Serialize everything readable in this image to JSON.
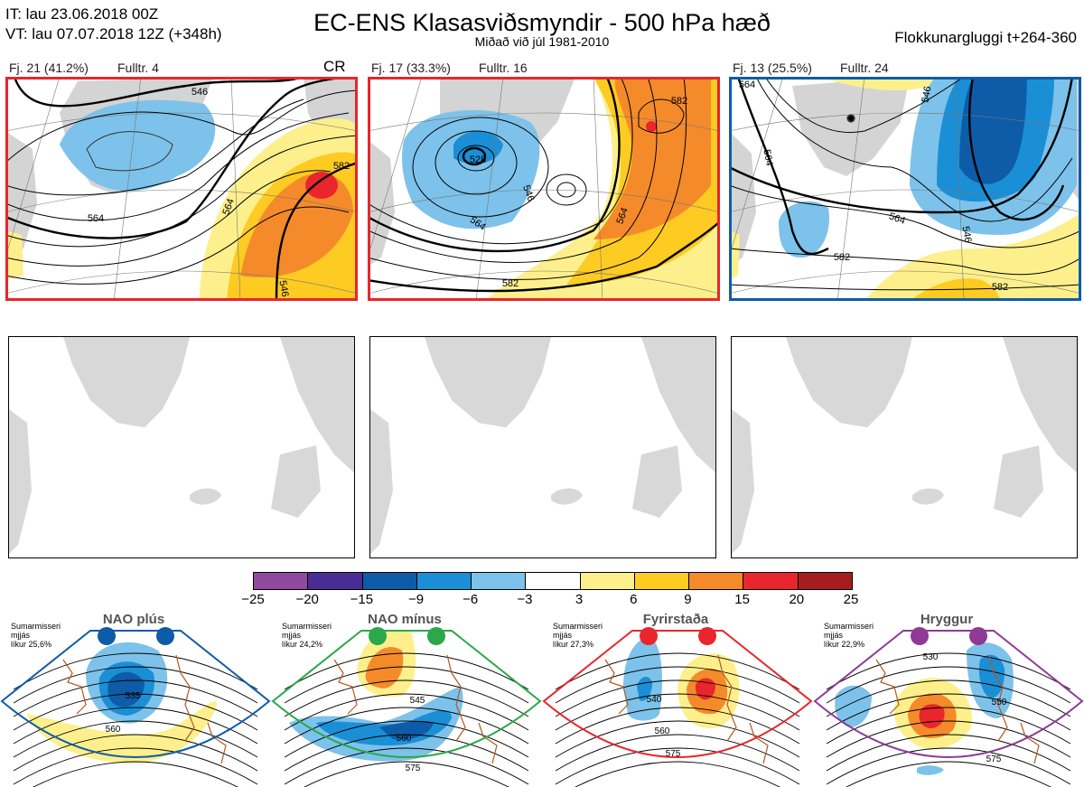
{
  "header": {
    "it": "IT: lau 23.06.2018 00Z",
    "vt": "VT: lau 07.07.2018 12Z  (+348h)",
    "title": "EC-ENS Klasasviðsmyndir - 500 hPa hæð",
    "subtitle": "Miðað við júl 1981-2010",
    "window": "Flokkunargluggi t+264-360"
  },
  "clusters": [
    {
      "label": "Fj. 21 (41.2%)",
      "fulltr": "Fulltr. 4",
      "code": "CR",
      "frame_color": "#e8262c",
      "contours": [
        "546",
        "564",
        "582",
        "564",
        "546"
      ]
    },
    {
      "label": "Fj. 17 (33.3%)",
      "fulltr": "Fulltr. 16",
      "code": "",
      "frame_color": "#e8262c",
      "contours": [
        "528",
        "546",
        "564",
        "582",
        "564",
        "582"
      ]
    },
    {
      "label": "Fj. 13 (25.5%)",
      "fulltr": "Fulltr. 24",
      "code": "",
      "frame_color": "#0e5ca8",
      "contours": [
        "564",
        "546",
        "564",
        "546",
        "582",
        "564",
        "582"
      ]
    }
  ],
  "colorbar": {
    "ticks": [
      "−25",
      "−20",
      "−15",
      "−9",
      "−6",
      "−3",
      "3",
      "6",
      "9",
      "15",
      "20",
      "25"
    ],
    "colors": [
      "#8e4a9c",
      "#4a2d94",
      "#0e5ca8",
      "#1b8fd6",
      "#7dc2ea",
      "#ffffff",
      "#fdf08c",
      "#fdcb22",
      "#f58a2a",
      "#e8262c",
      "#a51d1f"
    ]
  },
  "regimes": [
    {
      "name": "NAO plús",
      "line1": "Sumarmisseri",
      "line2": "mjjás",
      "line3": "líkur 25,6%",
      "color": "#0e5ca8",
      "contours": [
        "535",
        "560"
      ]
    },
    {
      "name": "NAO mínus",
      "line1": "Sumarmisseri",
      "line2": "mjjás",
      "line3": "líkur 24,2%",
      "color": "#2aa84a",
      "contours": [
        "545",
        "560",
        "575"
      ]
    },
    {
      "name": "Fyrirstaða",
      "line1": "Sumarmisseri",
      "line2": "mjjás",
      "line3": "líkur 27,3%",
      "color": "#e8262c",
      "contours": [
        "540",
        "560",
        "575"
      ]
    },
    {
      "name": "Hryggur",
      "line1": "Sumarmisseri",
      "line2": "mjjás",
      "line3": "líkur 22,9%",
      "color": "#8e3a96",
      "contours": [
        "530",
        "550",
        "575"
      ]
    }
  ]
}
